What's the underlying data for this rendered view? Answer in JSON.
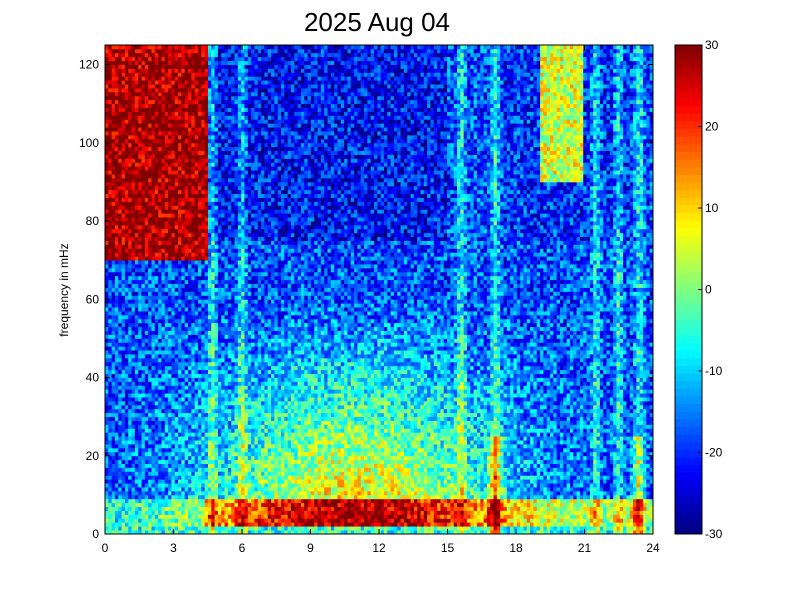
{
  "chart_data": {
    "type": "heatmap",
    "title": "2025 Aug 04",
    "xlabel": "",
    "ylabel": "frequency in mHz",
    "xlim": [
      0,
      24
    ],
    "ylim": [
      0,
      125
    ],
    "x_ticks": [
      "0",
      "3",
      "6",
      "9",
      "12",
      "15",
      "18",
      "21",
      "24"
    ],
    "y_ticks": [
      "0",
      "20",
      "40",
      "60",
      "80",
      "100",
      "120"
    ],
    "colorbar": {
      "range": [
        -30,
        30
      ],
      "ticks": [
        "30",
        "20",
        "10",
        "0",
        "-10",
        "-20",
        "-30"
      ],
      "colormap": "jet"
    },
    "grid": false,
    "description_of_values": "Spectral power (colorbar units) vs time of day (hours, x) and frequency (mHz, y)",
    "features": {
      "high_freq_band_level_early": 28,
      "low_freq_band_level_active": 22,
      "mid_freq_level_active": 8,
      "background_level": -18,
      "bright_streak_hours": [
        4.7,
        6.0,
        15.6,
        17.1,
        21.5,
        22.5,
        23.4
      ],
      "low_freq_burst_hours": [
        17.1,
        23.3
      ]
    }
  }
}
